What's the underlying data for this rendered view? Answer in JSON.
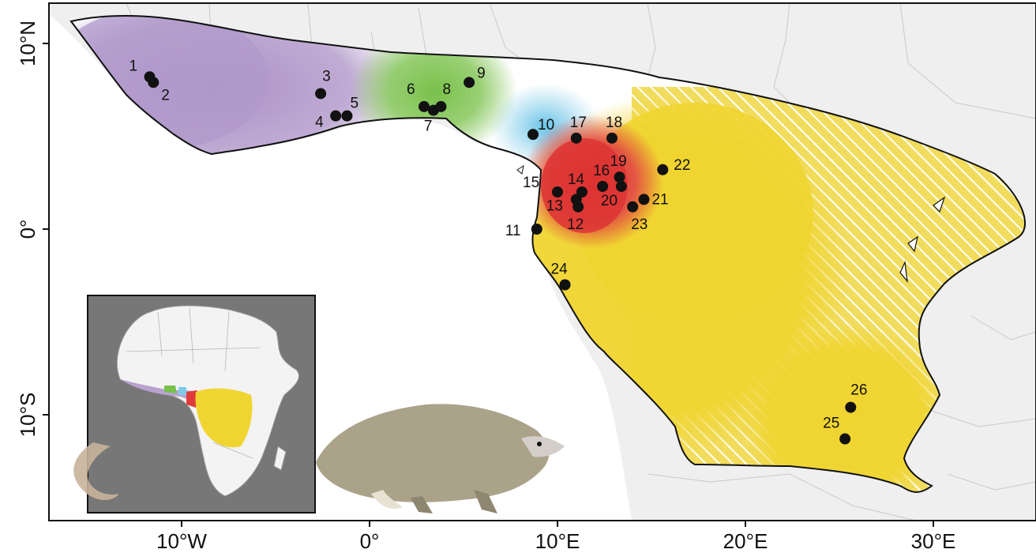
{
  "map": {
    "lat_ticks": [
      {
        "value": 10,
        "label": "10°N"
      },
      {
        "value": 0,
        "label": "0°"
      },
      {
        "value": -10,
        "label": "10°S"
      }
    ],
    "lon_ticks": [
      {
        "value": -10,
        "label": "10°W"
      },
      {
        "value": 0,
        "label": "0°"
      },
      {
        "value": 10,
        "label": "10°E"
      },
      {
        "value": 20,
        "label": "20°E"
      },
      {
        "value": 30,
        "label": "30°E"
      }
    ],
    "lon_range": [
      -16.8,
      35.3
    ],
    "lat_range": [
      -15.5,
      11.5
    ],
    "cluster_colors": {
      "west_africa": "#b9a2cf",
      "ghana_dahomey": "#79c04a",
      "cameroon_west": "#7fcbe6",
      "gulf_of_guinea": "#e03b3b",
      "central_africa": "#f0d531",
      "central_africa_hatched": "#f4e488"
    },
    "inset_label": "Africa locator inset",
    "animal_icon": "pangolin-icon"
  },
  "sites": [
    {
      "id": "1",
      "lon": -11.7,
      "lat": 8.2
    },
    {
      "id": "2",
      "lon": -11.5,
      "lat": 7.9
    },
    {
      "id": "3",
      "lon": -2.6,
      "lat": 7.3
    },
    {
      "id": "4",
      "lon": -1.8,
      "lat": 6.1
    },
    {
      "id": "5",
      "lon": -1.2,
      "lat": 6.1
    },
    {
      "id": "6",
      "lon": 2.9,
      "lat": 6.6
    },
    {
      "id": "7",
      "lon": 3.4,
      "lat": 6.4
    },
    {
      "id": "8",
      "lon": 3.8,
      "lat": 6.6
    },
    {
      "id": "9",
      "lon": 5.3,
      "lat": 7.9
    },
    {
      "id": "10",
      "lon": 8.7,
      "lat": 5.1
    },
    {
      "id": "11",
      "lon": 8.9,
      "lat": 0.0
    },
    {
      "id": "12",
      "lon": 11.1,
      "lat": 1.2
    },
    {
      "id": "13",
      "lon": 11.0,
      "lat": 1.6
    },
    {
      "id": "14",
      "lon": 11.3,
      "lat": 2.0
    },
    {
      "id": "15",
      "lon": 10.0,
      "lat": 2.0
    },
    {
      "id": "16",
      "lon": 12.4,
      "lat": 2.3
    },
    {
      "id": "17",
      "lon": 11.0,
      "lat": 4.9
    },
    {
      "id": "18",
      "lon": 12.9,
      "lat": 4.9
    },
    {
      "id": "19",
      "lon": 13.3,
      "lat": 2.8
    },
    {
      "id": "20",
      "lon": 13.4,
      "lat": 2.3
    },
    {
      "id": "21",
      "lon": 14.6,
      "lat": 1.6
    },
    {
      "id": "22",
      "lon": 15.6,
      "lat": 3.2
    },
    {
      "id": "23",
      "lon": 14.0,
      "lat": 1.2
    },
    {
      "id": "24",
      "lon": 10.4,
      "lat": -3.0
    },
    {
      "id": "25",
      "lon": 25.3,
      "lat": -11.3
    },
    {
      "id": "26",
      "lon": 25.6,
      "lat": -9.6
    }
  ]
}
